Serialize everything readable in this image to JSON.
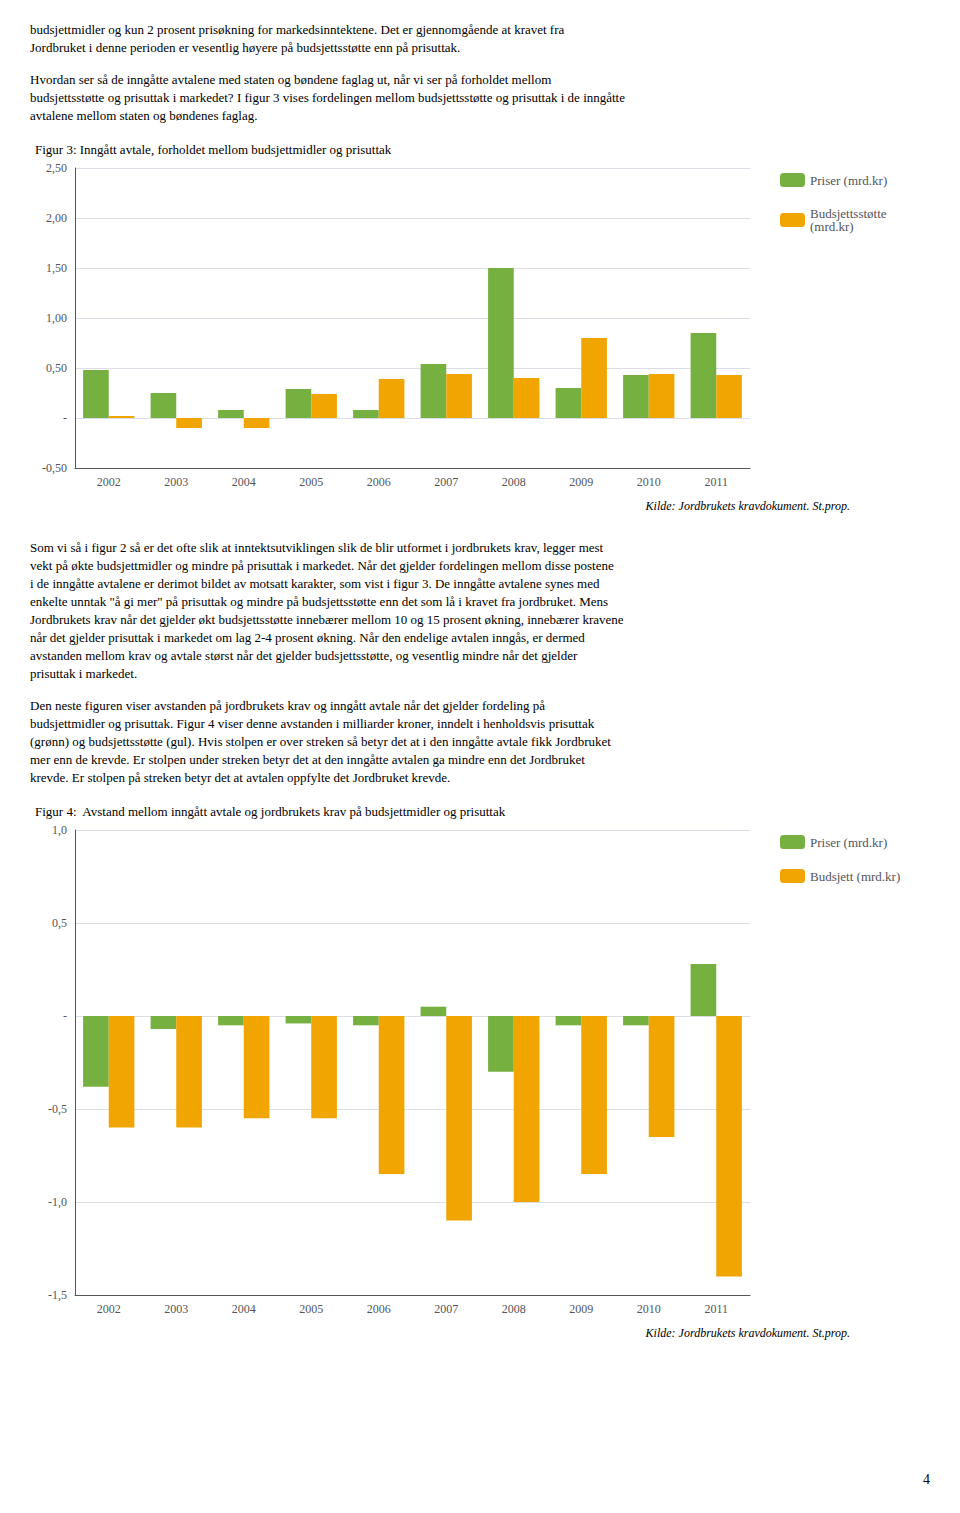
{
  "chart_data": [
    {
      "type": "bar",
      "text_before": [
        [
          "budsjettmidler og kun 2 prosent prisøkning for markedsinntektene. Det er gjennomgående at kravet fra",
          "Jordbruket i denne perioden er vesentlig høyere på budsjettsstøtte enn på prisuttak."
        ],
        [
          "Hvordan ser så de inngåtte avtalene med staten og bøndene faglag ut, når vi ser på forholdet mellom",
          "budsjettsstøtte og prisuttak i markedet? I figur 3 vises fordelingen mellom budsjettsstøtte og prisuttak i de inngåtte",
          "avtalene mellom staten og bøndenes faglag."
        ]
      ],
      "title": "Figur 3: Inngått avtale, forholdet mellom budsjettmidler og prisuttak",
      "categories": [
        "2002",
        "2003",
        "2004",
        "2005",
        "2006",
        "2007",
        "2008",
        "2009",
        "2010",
        "2011"
      ],
      "series": [
        {
          "name": "Priser (mrd.kr)",
          "color": "#76b041",
          "values": [
            0.48,
            0.25,
            0.08,
            0.29,
            0.08,
            0.54,
            1.5,
            0.3,
            0.43,
            0.85
          ]
        },
        {
          "name": "Budsjettsstøtte\n(mrd.kr)",
          "color": "#f0a500",
          "values": [
            0.02,
            -0.1,
            -0.1,
            0.24,
            0.39,
            0.44,
            0.4,
            0.8,
            0.44,
            0.43
          ]
        }
      ],
      "ylim": [
        -0.5,
        2.5
      ],
      "yticks": [
        {
          "value": -0.5,
          "label": "-0,50"
        },
        {
          "value": 0.0,
          "label": "-"
        },
        {
          "value": 0.5,
          "label": "0,50"
        },
        {
          "value": 1.0,
          "label": "1,00"
        },
        {
          "value": 1.5,
          "label": "1,50"
        },
        {
          "value": 2.0,
          "label": "2,00"
        },
        {
          "value": 2.5,
          "label": "2,50"
        }
      ],
      "grid": true,
      "legend": "right",
      "source": "Kilde: Jordbrukets kravdokument. St.prop."
    },
    {
      "type": "bar",
      "text_before": [
        [
          "Som vi så i figur 2 så er det ofte slik at inntektsutviklingen slik de blir utformet i jordbrukets krav, legger mest",
          "vekt på økte budsjettmidler og mindre på prisuttak i markedet. Når det gjelder fordelingen mellom disse postene",
          "i de inngåtte avtalene er derimot bildet av motsatt karakter, som vist i figur 3. De inngåtte avtalene synes med",
          "enkelte unntak \"å gi mer\" på prisuttak og mindre på budsjettsstøtte enn det som lå i kravet fra jordbruket. Mens",
          "Jordbrukets krav når det gjelder økt budsjettsstøtte innebærer mellom 10 og 15 prosent økning, innebærer kravene",
          "når det gjelder prisuttak i markedet om lag 2-4 prosent økning. Når den endelige avtalen inngås, er dermed",
          "avstanden mellom krav og avtale størst når det gjelder budsjettsstøtte, og vesentlig mindre når det gjelder",
          "prisuttak i markedet."
        ],
        [
          "Den neste figuren viser avstanden på jordbrukets krav og inngått avtale når det gjelder fordeling på",
          "budsjettmidler og prisuttak. Figur 4 viser denne avstanden i milliarder kroner, inndelt i henholdsvis prisuttak",
          "(grønn) og budsjettsstøtte (gul). Hvis stolpen er over streken så betyr det at i den inngåtte avtale fikk Jordbruket",
          "mer enn de krevde. Er stolpen under streken betyr det at den inngåtte avtalen ga mindre enn det Jordbruket",
          "krevde. Er stolpen på streken betyr det at avtalen oppfylte det Jordbruket krevde."
        ]
      ],
      "title": "Figur 4:  Avstand mellom inngått avtale og jordbrukets krav på budsjettmidler og prisuttak",
      "categories": [
        "2002",
        "2003",
        "2004",
        "2005",
        "2006",
        "2007",
        "2008",
        "2009",
        "2010",
        "2011"
      ],
      "series": [
        {
          "name": "Priser (mrd.kr)",
          "color": "#76b041",
          "values": [
            -0.38,
            -0.07,
            -0.05,
            -0.04,
            -0.05,
            0.05,
            -0.3,
            -0.05,
            -0.05,
            0.28
          ]
        },
        {
          "name": "Budsjett (mrd.kr)",
          "color": "#f0a500",
          "values": [
            -0.6,
            -0.6,
            -0.55,
            -0.55,
            -0.85,
            -1.1,
            -1.0,
            -0.85,
            -0.65,
            -1.4
          ]
        }
      ],
      "ylim": [
        -1.5,
        1.0
      ],
      "yticks": [
        {
          "value": -1.5,
          "label": "-1,5"
        },
        {
          "value": -1.0,
          "label": "-1,0"
        },
        {
          "value": -0.5,
          "label": "-0,5"
        },
        {
          "value": 0.0,
          "label": "-"
        },
        {
          "value": 0.5,
          "label": "0,5"
        },
        {
          "value": 1.0,
          "label": "1,0"
        }
      ],
      "grid": true,
      "legend": "right",
      "source": "Kilde: Jordbrukets kravdokument. St.prop."
    }
  ],
  "page_number": "4"
}
